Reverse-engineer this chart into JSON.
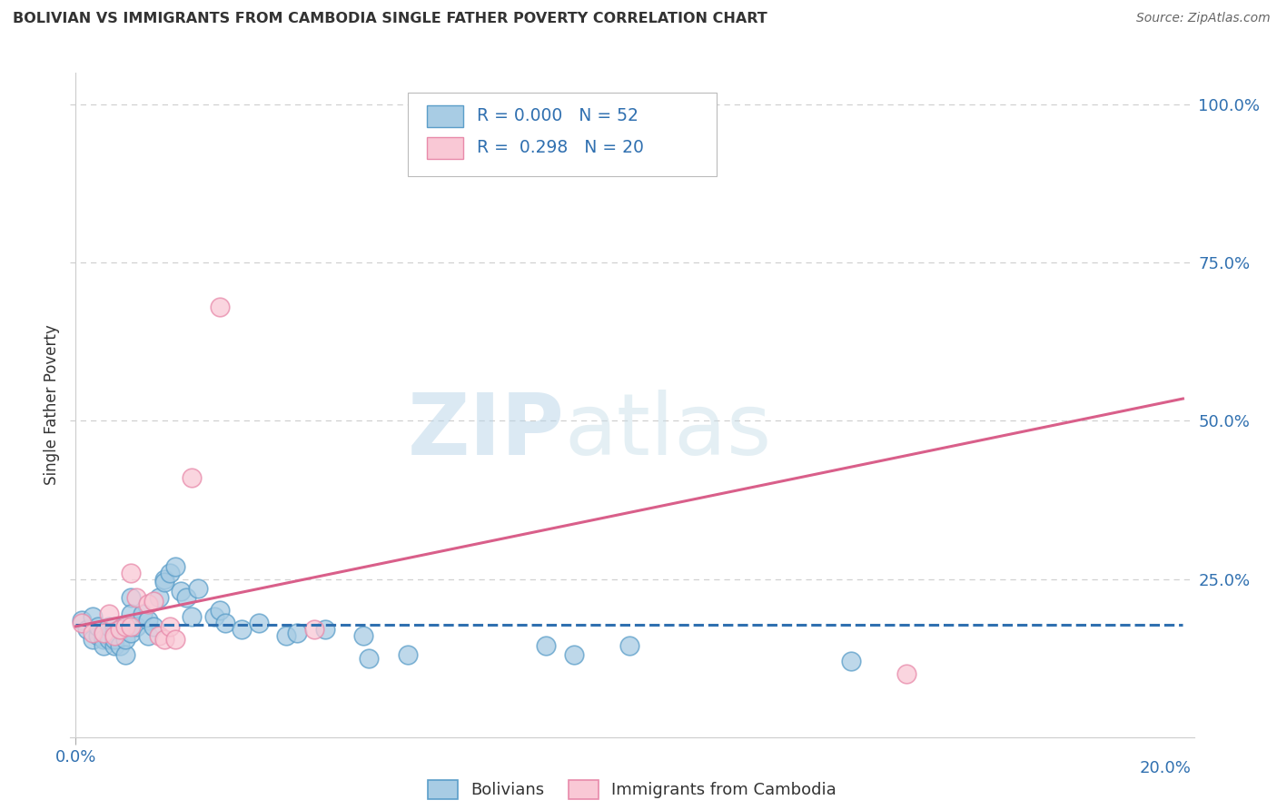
{
  "title": "BOLIVIAN VS IMMIGRANTS FROM CAMBODIA SINGLE FATHER POVERTY CORRELATION CHART",
  "source": "Source: ZipAtlas.com",
  "ylabel": "Single Father Poverty",
  "right_yticks": [
    "100.0%",
    "75.0%",
    "50.0%",
    "25.0%"
  ],
  "right_ytick_vals": [
    1.0,
    0.75,
    0.5,
    0.25
  ],
  "legend_blue_r": "0.000",
  "legend_blue_n": "52",
  "legend_pink_r": "0.298",
  "legend_pink_n": "20",
  "blue_fill": "#a8cce4",
  "pink_fill": "#f9c8d5",
  "blue_edge": "#5b9ec9",
  "pink_edge": "#e88aaa",
  "blue_line_color": "#3070b0",
  "pink_line_color": "#d95f8a",
  "blue_scatter": [
    [
      0.001,
      0.185
    ],
    [
      0.002,
      0.17
    ],
    [
      0.003,
      0.19
    ],
    [
      0.003,
      0.155
    ],
    [
      0.004,
      0.16
    ],
    [
      0.004,
      0.175
    ],
    [
      0.005,
      0.165
    ],
    [
      0.005,
      0.155
    ],
    [
      0.005,
      0.145
    ],
    [
      0.006,
      0.16
    ],
    [
      0.006,
      0.155
    ],
    [
      0.006,
      0.175
    ],
    [
      0.007,
      0.145
    ],
    [
      0.007,
      0.175
    ],
    [
      0.007,
      0.165
    ],
    [
      0.007,
      0.155
    ],
    [
      0.008,
      0.17
    ],
    [
      0.008,
      0.145
    ],
    [
      0.009,
      0.13
    ],
    [
      0.009,
      0.155
    ],
    [
      0.01,
      0.22
    ],
    [
      0.01,
      0.195
    ],
    [
      0.01,
      0.165
    ],
    [
      0.011,
      0.175
    ],
    [
      0.012,
      0.195
    ],
    [
      0.013,
      0.185
    ],
    [
      0.013,
      0.16
    ],
    [
      0.014,
      0.175
    ],
    [
      0.015,
      0.22
    ],
    [
      0.016,
      0.25
    ],
    [
      0.016,
      0.245
    ],
    [
      0.017,
      0.26
    ],
    [
      0.018,
      0.27
    ],
    [
      0.019,
      0.23
    ],
    [
      0.02,
      0.22
    ],
    [
      0.021,
      0.19
    ],
    [
      0.022,
      0.235
    ],
    [
      0.025,
      0.19
    ],
    [
      0.026,
      0.2
    ],
    [
      0.027,
      0.18
    ],
    [
      0.03,
      0.17
    ],
    [
      0.033,
      0.18
    ],
    [
      0.038,
      0.16
    ],
    [
      0.04,
      0.165
    ],
    [
      0.045,
      0.17
    ],
    [
      0.052,
      0.16
    ],
    [
      0.053,
      0.125
    ],
    [
      0.06,
      0.13
    ],
    [
      0.085,
      0.145
    ],
    [
      0.09,
      0.13
    ],
    [
      0.1,
      0.145
    ],
    [
      0.14,
      0.12
    ]
  ],
  "pink_scatter": [
    [
      0.001,
      0.18
    ],
    [
      0.003,
      0.165
    ],
    [
      0.005,
      0.165
    ],
    [
      0.006,
      0.195
    ],
    [
      0.007,
      0.16
    ],
    [
      0.008,
      0.17
    ],
    [
      0.009,
      0.175
    ],
    [
      0.01,
      0.175
    ],
    [
      0.01,
      0.26
    ],
    [
      0.011,
      0.22
    ],
    [
      0.013,
      0.21
    ],
    [
      0.014,
      0.215
    ],
    [
      0.015,
      0.16
    ],
    [
      0.016,
      0.155
    ],
    [
      0.017,
      0.175
    ],
    [
      0.018,
      0.155
    ],
    [
      0.021,
      0.41
    ],
    [
      0.026,
      0.68
    ],
    [
      0.043,
      0.17
    ],
    [
      0.15,
      0.1
    ]
  ],
  "blue_trend_x": [
    0.0,
    0.2
  ],
  "blue_trend_y": [
    0.178,
    0.178
  ],
  "pink_trend_x": [
    0.0,
    0.2
  ],
  "pink_trend_y": [
    0.175,
    0.535
  ],
  "xlim": [
    -0.001,
    0.202
  ],
  "ylim": [
    0.0,
    1.05
  ],
  "watermark_zip": "ZIP",
  "watermark_atlas": "atlas",
  "background_color": "#ffffff",
  "grid_color": "#d0d0d0",
  "label_color": "#3070b0",
  "text_color": "#333333"
}
